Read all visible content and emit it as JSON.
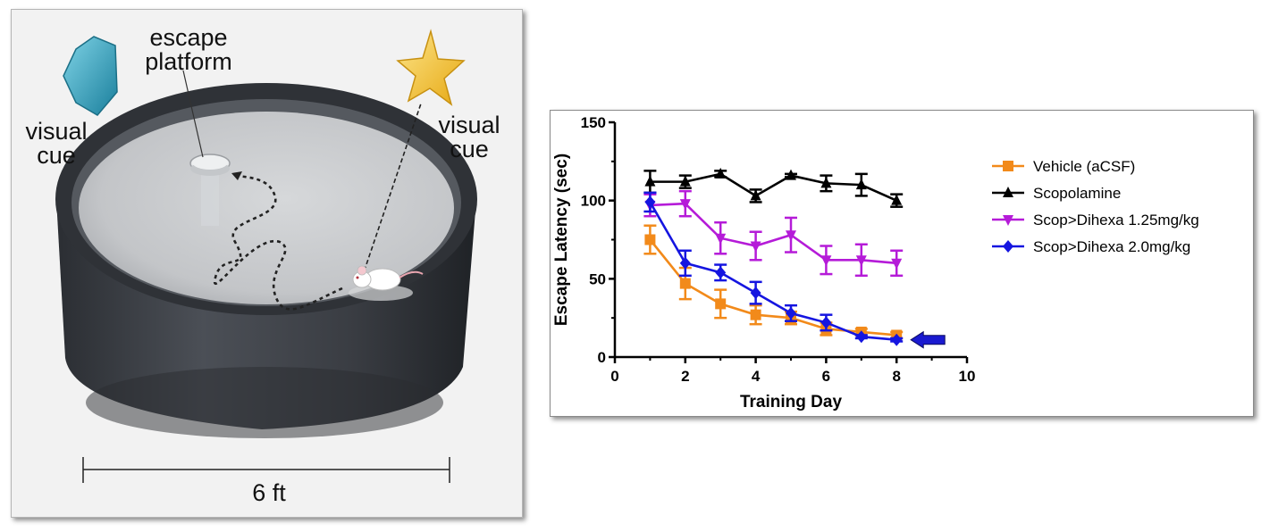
{
  "illustration": {
    "cue_left_label_1": "visual",
    "cue_left_label_2": "cue",
    "cue_right_label_1": "visual",
    "cue_right_label_2": "cue",
    "platform_label_1": "escape",
    "platform_label_2": "platform",
    "scale_label": "6 ft",
    "colors": {
      "hexagon_cue": "#2aa6c4",
      "star_cue": "#f6c52a",
      "pool_rim": "#3a3d42",
      "water": "#c7c9cc"
    },
    "icons": [
      "hexagon-cue-icon",
      "star-cue-icon",
      "mouse-icon",
      "platform-icon"
    ]
  },
  "chart_data": {
    "type": "line",
    "xlabel": "Training Day",
    "ylabel": "Escape Latency (sec)",
    "xlim": [
      0,
      10
    ],
    "ylim": [
      0,
      150
    ],
    "xticks": [
      "0",
      "2",
      "4",
      "6",
      "8",
      "10"
    ],
    "yticks": [
      "0",
      "50",
      "100",
      "150"
    ],
    "grid": false,
    "legend_position": "right",
    "series": [
      {
        "name": "Vehicle (aCSF)",
        "color": "#f28a1a",
        "marker": "square",
        "x": [
          1,
          2,
          3,
          4,
          5,
          6,
          7,
          8
        ],
        "y": [
          75,
          47,
          34,
          27,
          25,
          18,
          16,
          14
        ],
        "err": [
          9,
          10,
          9,
          6,
          4,
          4,
          2,
          2
        ]
      },
      {
        "name": "Scopolamine",
        "color": "#000000",
        "marker": "triangle-up",
        "x": [
          1,
          2,
          3,
          4,
          5,
          6,
          7,
          8
        ],
        "y": [
          112,
          112,
          117,
          103,
          116,
          111,
          110,
          100
        ],
        "err": [
          7,
          4,
          2,
          4,
          1,
          5,
          7,
          4
        ]
      },
      {
        "name": "Scop>Dihexa 1.25mg/kg",
        "color": "#b51bd8",
        "marker": "triangle-down",
        "x": [
          1,
          2,
          3,
          4,
          5,
          6,
          7,
          8
        ],
        "y": [
          97,
          98,
          76,
          71,
          78,
          62,
          62,
          60
        ],
        "err": [
          7,
          8,
          10,
          9,
          11,
          9,
          10,
          8
        ]
      },
      {
        "name": "Scop>Dihexa 2.0mg/kg",
        "color": "#1515e0",
        "marker": "diamond",
        "x": [
          1,
          2,
          3,
          4,
          5,
          6,
          7,
          8
        ],
        "y": [
          99,
          60,
          54,
          41,
          28,
          22,
          13,
          11
        ],
        "err": [
          6,
          8,
          5,
          7,
          5,
          5,
          1,
          1
        ]
      }
    ],
    "annotation": {
      "type": "arrow",
      "direction": "left",
      "points_to": "Scop>Dihexa 2.0mg/kg day 8",
      "color": "#1a1ad0"
    }
  }
}
